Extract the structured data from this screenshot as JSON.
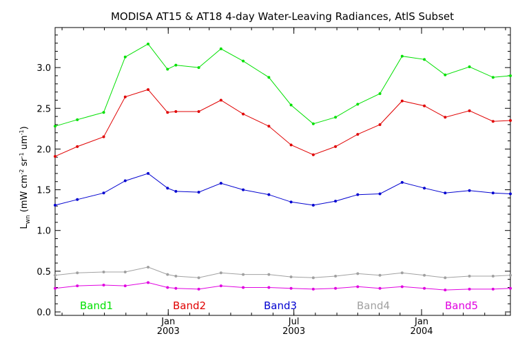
{
  "chart_data": {
    "type": "line",
    "title": "MODISA AT15 & AT18 4-day Water-Leaving Radiances, AtlS Subset",
    "ylabel_main": "L",
    "ylabel_sub": "wn",
    "ylabel_rest": " (mW cm",
    "ylabel_exp1": "-2",
    "ylabel_mid": " sr",
    "ylabel_exp2": "-1",
    "ylabel_end": " um",
    "ylabel_exp3": "-1",
    "ylabel_close": ")",
    "xlabel": "",
    "ylim": [
      0.0,
      3.5
    ],
    "yticks": [
      0.0,
      0.5,
      1.0,
      1.5,
      2.0,
      2.5,
      3.0
    ],
    "ytick_labels": [
      "0.0",
      "0.5",
      "1.0",
      "1.5",
      "2.0",
      "2.5",
      "3.0"
    ],
    "xlim": [
      "2002-07-22",
      "2004-05-08"
    ],
    "xticks": [
      {
        "date": "2003-01-01",
        "line1": "Jan",
        "line2": "2003"
      },
      {
        "date": "2003-07-01",
        "line1": "Jul",
        "line2": "2003"
      },
      {
        "date": "2004-01-01",
        "line1": "Jan",
        "line2": "2004"
      }
    ],
    "x": [
      "2002-07-22",
      "2002-08-23",
      "2002-09-30",
      "2002-10-31",
      "2002-12-03",
      "2002-12-31",
      "2003-01-12",
      "2003-02-14",
      "2003-03-18",
      "2003-04-19",
      "2003-05-26",
      "2003-06-27",
      "2003-07-29",
      "2003-08-30",
      "2003-10-01",
      "2003-11-02",
      "2003-12-04",
      "2004-01-05",
      "2004-02-04",
      "2004-03-10",
      "2004-04-13",
      "2004-05-08"
    ],
    "series": [
      {
        "name": "Band1",
        "color": "#00e000",
        "values": [
          2.28,
          2.36,
          2.45,
          3.13,
          3.29,
          2.98,
          3.03,
          3.0,
          3.23,
          3.08,
          2.88,
          2.54,
          2.31,
          2.39,
          2.55,
          2.68,
          3.14,
          3.1,
          2.91,
          3.01,
          2.88,
          2.9
        ]
      },
      {
        "name": "Band2",
        "color": "#e00000",
        "values": [
          1.91,
          2.03,
          2.15,
          2.64,
          2.73,
          2.45,
          2.46,
          2.46,
          2.6,
          2.43,
          2.28,
          2.05,
          1.93,
          2.03,
          2.18,
          2.3,
          2.59,
          2.53,
          2.39,
          2.47,
          2.34,
          2.35
        ]
      },
      {
        "name": "Band3",
        "color": "#0000d0",
        "values": [
          1.31,
          1.38,
          1.46,
          1.61,
          1.7,
          1.52,
          1.48,
          1.47,
          1.58,
          1.5,
          1.44,
          1.35,
          1.31,
          1.36,
          1.44,
          1.45,
          1.59,
          1.52,
          1.46,
          1.49,
          1.46,
          1.45
        ]
      },
      {
        "name": "Band4",
        "color": "#a0a0a0",
        "values": [
          0.45,
          0.48,
          0.49,
          0.49,
          0.55,
          0.46,
          0.44,
          0.42,
          0.48,
          0.46,
          0.46,
          0.43,
          0.42,
          0.44,
          0.47,
          0.45,
          0.48,
          0.45,
          0.42,
          0.44,
          0.44,
          0.45
        ]
      },
      {
        "name": "Band5",
        "color": "#e000e0",
        "values": [
          0.29,
          0.32,
          0.33,
          0.32,
          0.36,
          0.3,
          0.29,
          0.28,
          0.32,
          0.3,
          0.3,
          0.29,
          0.28,
          0.29,
          0.31,
          0.29,
          0.31,
          0.29,
          0.27,
          0.28,
          0.28,
          0.29
        ]
      }
    ],
    "legend_position": "bottom inside plot, horizontal",
    "grid": false
  }
}
